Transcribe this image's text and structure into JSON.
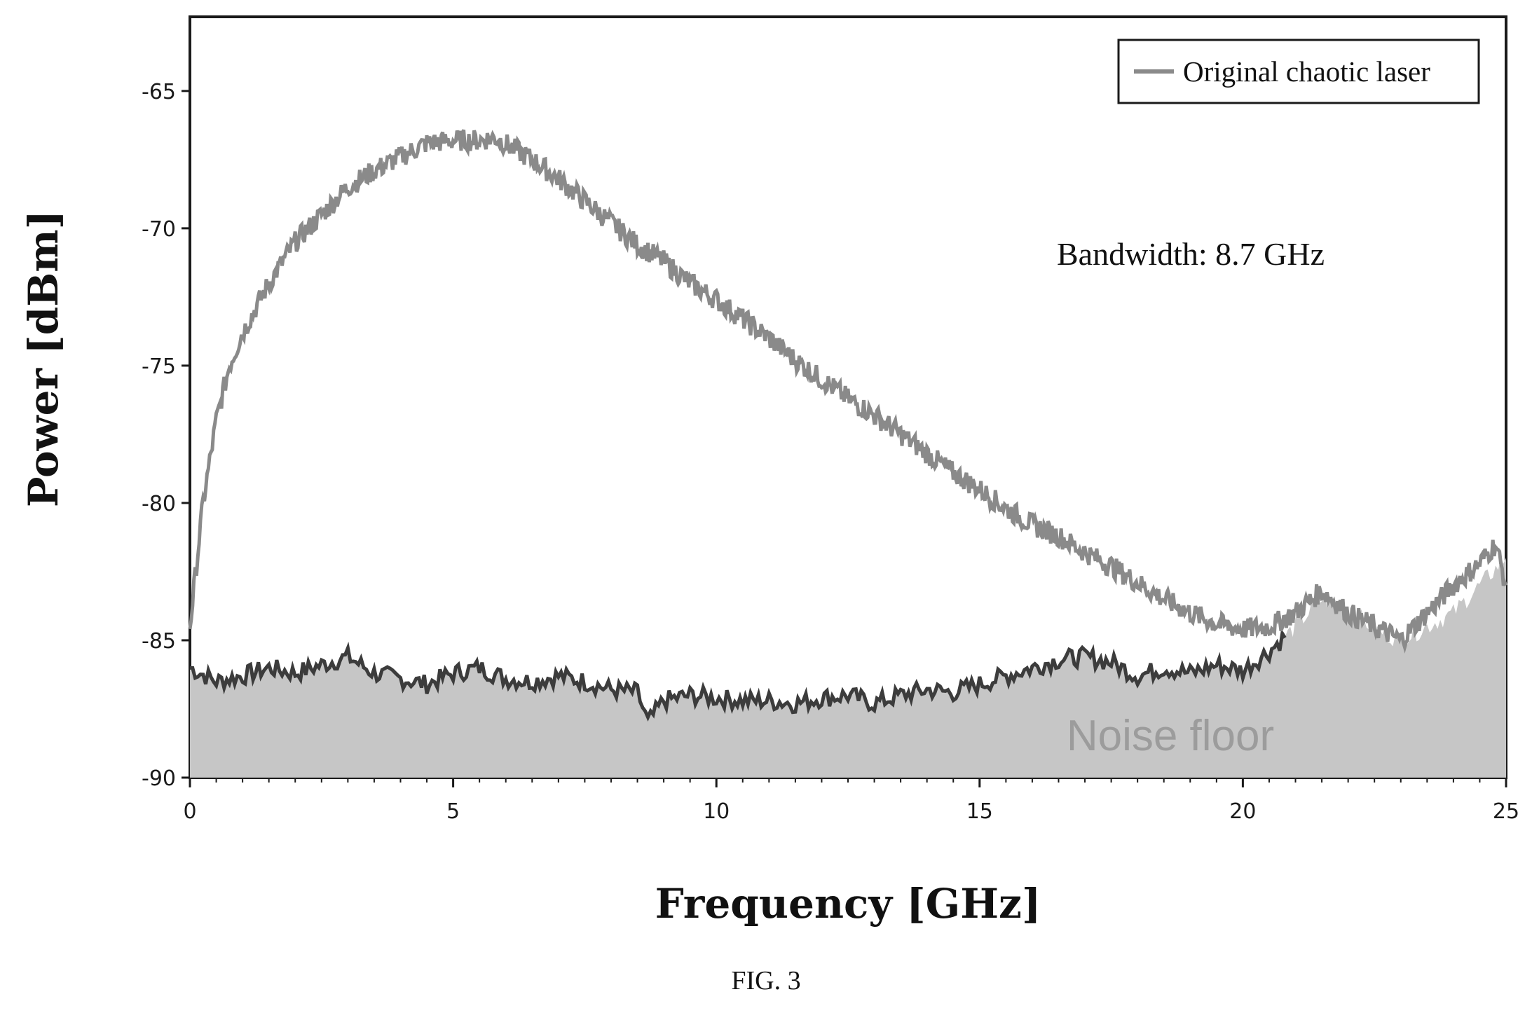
{
  "chart_data": {
    "type": "line",
    "xlabel": "Frequency [GHz]",
    "ylabel": "Power [dBm]",
    "xlim": [
      0,
      25
    ],
    "ylim": [
      -90,
      -62.3
    ],
    "x_ticks": [
      0,
      5,
      10,
      15,
      20,
      25
    ],
    "y_ticks": [
      -90,
      -85,
      -80,
      -75,
      -70,
      -65
    ],
    "x_tick_labels": [
      "0",
      "5",
      "10",
      "15",
      "20",
      "25"
    ],
    "y_tick_labels": [
      "-90",
      "-85",
      "-80",
      "-75",
      "-70",
      "-65"
    ],
    "grid": false,
    "legend": {
      "placement": "top-right",
      "entries": [
        "Original chaotic laser"
      ]
    },
    "annotations": {
      "bandwidth": "Bandwidth: 8.7 GHz",
      "noise": "Noise floor"
    },
    "colors": {
      "chaotic": "#8a8a8a",
      "noise_line": "#3c3c3c",
      "noise_fill": "#c6c6c6"
    },
    "series": [
      {
        "name": "Original chaotic laser",
        "x": [
          0,
          0.25,
          0.5,
          0.75,
          1,
          1.5,
          2,
          2.5,
          3,
          3.5,
          4,
          4.5,
          5,
          5.5,
          5.8,
          6.5,
          7,
          7.5,
          8,
          8.5,
          9,
          9.5,
          10,
          10.5,
          11,
          11.5,
          12,
          12.5,
          13,
          13.5,
          14,
          14.5,
          15,
          15.5,
          16,
          16.5,
          17,
          17.5,
          18,
          18.5,
          19,
          19.5,
          20,
          20.5,
          21,
          21.5,
          22,
          22.5,
          23,
          23.5,
          24,
          24.5,
          24.8,
          25
        ],
        "y": [
          -84.5,
          -80.0,
          -77.0,
          -75.0,
          -73.8,
          -72.0,
          -70.5,
          -69.5,
          -68.5,
          -67.9,
          -67.4,
          -66.9,
          -66.8,
          -66.8,
          -66.7,
          -67.5,
          -68.2,
          -69.0,
          -69.8,
          -70.6,
          -71.2,
          -72.0,
          -72.6,
          -73.3,
          -74.0,
          -74.8,
          -75.5,
          -76.2,
          -76.8,
          -77.5,
          -78.2,
          -78.9,
          -79.5,
          -80.2,
          -80.8,
          -81.2,
          -81.8,
          -82.3,
          -82.9,
          -83.5,
          -84.0,
          -84.4,
          -84.6,
          -84.5,
          -84.0,
          -83.2,
          -84.0,
          -84.5,
          -85.0,
          -84.0,
          -83.0,
          -82.2,
          -81.5,
          -83.0
        ]
      },
      {
        "name": "Noise floor",
        "x": [
          0,
          0.5,
          1,
          1.5,
          2,
          2.5,
          3,
          3.5,
          4,
          4.5,
          5,
          5.5,
          6,
          6.5,
          7,
          7.5,
          8,
          8.5,
          8.7,
          9,
          9.5,
          10,
          10.5,
          11,
          11.5,
          12,
          12.5,
          13,
          13.5,
          14,
          14.5,
          15,
          15.5,
          16,
          16.5,
          17,
          17.5,
          18,
          18.5,
          19,
          19.5,
          20,
          20.5,
          21,
          21.5,
          22,
          22.5,
          23,
          23.5,
          24,
          24.5,
          25
        ],
        "y": [
          -86.0,
          -86.5,
          -86.3,
          -86.0,
          -86.2,
          -85.9,
          -85.6,
          -86.2,
          -86.4,
          -86.6,
          -86.2,
          -86.0,
          -86.4,
          -86.5,
          -86.3,
          -86.5,
          -86.8,
          -86.9,
          -88.0,
          -87.2,
          -87.0,
          -87.1,
          -87.2,
          -87.2,
          -87.3,
          -87.1,
          -87.0,
          -87.3,
          -87.0,
          -86.8,
          -86.9,
          -86.6,
          -86.3,
          -86.0,
          -85.7,
          -85.6,
          -85.8,
          -86.3,
          -86.0,
          -86.2,
          -85.9,
          -86.1,
          -85.4,
          -84.5,
          -83.5,
          -83.8,
          -84.6,
          -85.0,
          -84.5,
          -84.0,
          -83.0,
          -82.0
        ]
      }
    ]
  },
  "caption": "FIG. 3"
}
